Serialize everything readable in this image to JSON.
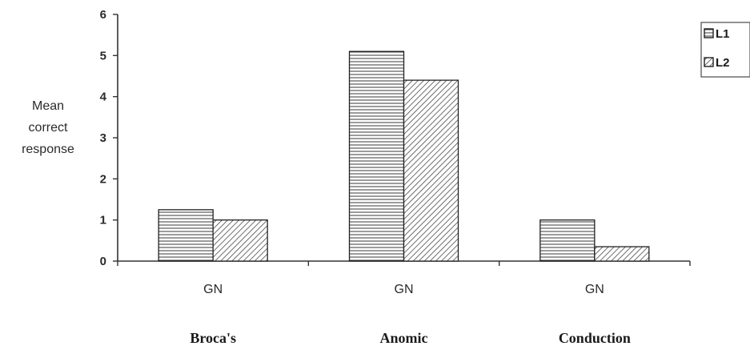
{
  "chart_data": {
    "type": "bar",
    "ylabel": [
      "Mean",
      "correct",
      "response"
    ],
    "ylim": [
      0,
      6
    ],
    "yticks": [
      0,
      1,
      2,
      3,
      4,
      5,
      6
    ],
    "categories": [
      "GN",
      "GN",
      "GN"
    ],
    "groups": [
      "Broca's",
      "Anomic",
      "Conduction"
    ],
    "series": [
      {
        "name": "L1",
        "values": [
          1.25,
          5.1,
          1.0
        ],
        "pattern": "horizontal"
      },
      {
        "name": "L2",
        "values": [
          1.0,
          4.4,
          0.35
        ],
        "pattern": "diagonal"
      }
    ],
    "legend_position": "top-right",
    "grid": false
  }
}
